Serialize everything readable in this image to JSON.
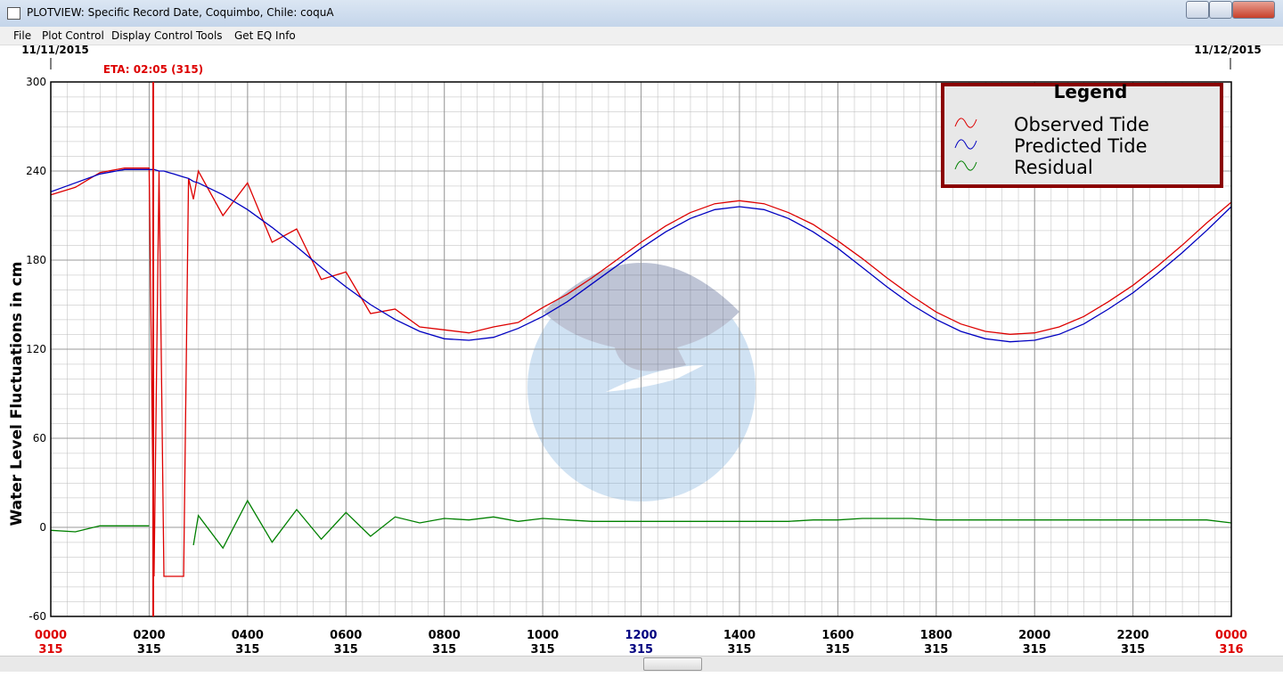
{
  "window": {
    "title": "PLOTVIEW: Specific Record Date, Coquimbo, Chile: coquA",
    "menu": [
      "File",
      "Plot Control",
      "Display Control",
      "Tools",
      "Get EQ Info"
    ]
  },
  "chart_data": {
    "type": "line",
    "ylabel": "Water Level Fluctuations in cm",
    "start_date": "11/11/2015",
    "end_date": "11/12/2015",
    "eta": {
      "label": "ETA: 02:05 (315)",
      "x": 2.0833,
      "color": "#dd0000"
    },
    "xlim": [
      0,
      24
    ],
    "ylim": [
      -60,
      300
    ],
    "yticks": [
      -60,
      0,
      60,
      120,
      180,
      240,
      300
    ],
    "xticks": [
      {
        "value": 0,
        "label": "0000"
      },
      {
        "value": 2,
        "label": "0200"
      },
      {
        "value": 4,
        "label": "0400"
      },
      {
        "value": 6,
        "label": "0600"
      },
      {
        "value": 8,
        "label": "0800"
      },
      {
        "value": 10,
        "label": "1000"
      },
      {
        "value": 12,
        "label": "1200"
      },
      {
        "value": 14,
        "label": "1400"
      },
      {
        "value": 16,
        "label": "1600"
      },
      {
        "value": 18,
        "label": "1800"
      },
      {
        "value": 20,
        "label": "2000"
      },
      {
        "value": 22,
        "label": "2200"
      },
      {
        "value": 24,
        "label": "0000"
      }
    ],
    "xtick_days": [
      "315",
      "315",
      "315",
      "315",
      "315",
      "315",
      "315",
      "315",
      "315",
      "315",
      "315",
      "315",
      "316"
    ],
    "xtick_colors": [
      "#dd0000",
      "#000000",
      "#000000",
      "#000000",
      "#000000",
      "#000000",
      "#000080",
      "#000000",
      "#000000",
      "#000000",
      "#000000",
      "#000000",
      "#dd0000"
    ],
    "grid": true,
    "legend_title": "Legend",
    "legend_position": "upper right",
    "x": [
      0,
      0.5,
      1,
      1.5,
      2,
      2.1,
      2.2,
      2.3,
      2.4,
      2.5,
      2.6,
      2.7,
      2.8,
      2.9,
      3,
      3.5,
      4,
      4.5,
      5,
      5.5,
      6,
      6.5,
      7,
      7.5,
      8,
      8.5,
      9,
      9.5,
      10,
      10.5,
      11,
      11.5,
      12,
      12.5,
      13,
      13.5,
      14,
      14.5,
      15,
      15.5,
      16,
      16.5,
      17,
      17.5,
      18,
      18.5,
      19,
      19.5,
      20,
      20.5,
      21,
      21.5,
      22,
      22.5,
      23,
      23.5,
      24
    ],
    "series": [
      {
        "name": "Observed Tide",
        "color": "#dd0000",
        "values": [
          224,
          229,
          239,
          242,
          242,
          -33,
          240,
          -33,
          -33,
          -33,
          -33,
          -33,
          235,
          221,
          240,
          210,
          232,
          192,
          201,
          167,
          172,
          144,
          147,
          135,
          133,
          131,
          135,
          138,
          148,
          157,
          168,
          180,
          192,
          203,
          212,
          218,
          220,
          218,
          212,
          204,
          193,
          181,
          168,
          156,
          145,
          137,
          132,
          130,
          131,
          135,
          142,
          152,
          163,
          176,
          190,
          205,
          219
        ]
      },
      {
        "name": "Predicted Tide",
        "color": "#0000c0",
        "values": [
          226,
          232,
          238,
          241,
          241,
          241,
          240,
          240,
          239,
          238,
          237,
          236,
          235,
          233,
          232,
          224,
          214,
          202,
          189,
          175,
          162,
          150,
          140,
          132,
          127,
          126,
          128,
          134,
          142,
          152,
          164,
          176,
          188,
          199,
          208,
          214,
          216,
          214,
          208,
          199,
          188,
          175,
          162,
          150,
          140,
          132,
          127,
          125,
          126,
          130,
          137,
          147,
          158,
          171,
          185,
          200,
          216
        ]
      },
      {
        "name": "Residual",
        "color": "#008000",
        "values": [
          -2,
          -3,
          1,
          1,
          1,
          null,
          null,
          null,
          null,
          null,
          null,
          null,
          null,
          -12,
          8,
          -14,
          18,
          -10,
          12,
          -8,
          10,
          -6,
          7,
          3,
          6,
          5,
          7,
          4,
          6,
          5,
          4,
          4,
          4,
          4,
          4,
          4,
          4,
          4,
          4,
          5,
          5,
          6,
          6,
          6,
          5,
          5,
          5,
          5,
          5,
          5,
          5,
          5,
          5,
          5,
          5,
          5,
          3
        ]
      }
    ]
  }
}
